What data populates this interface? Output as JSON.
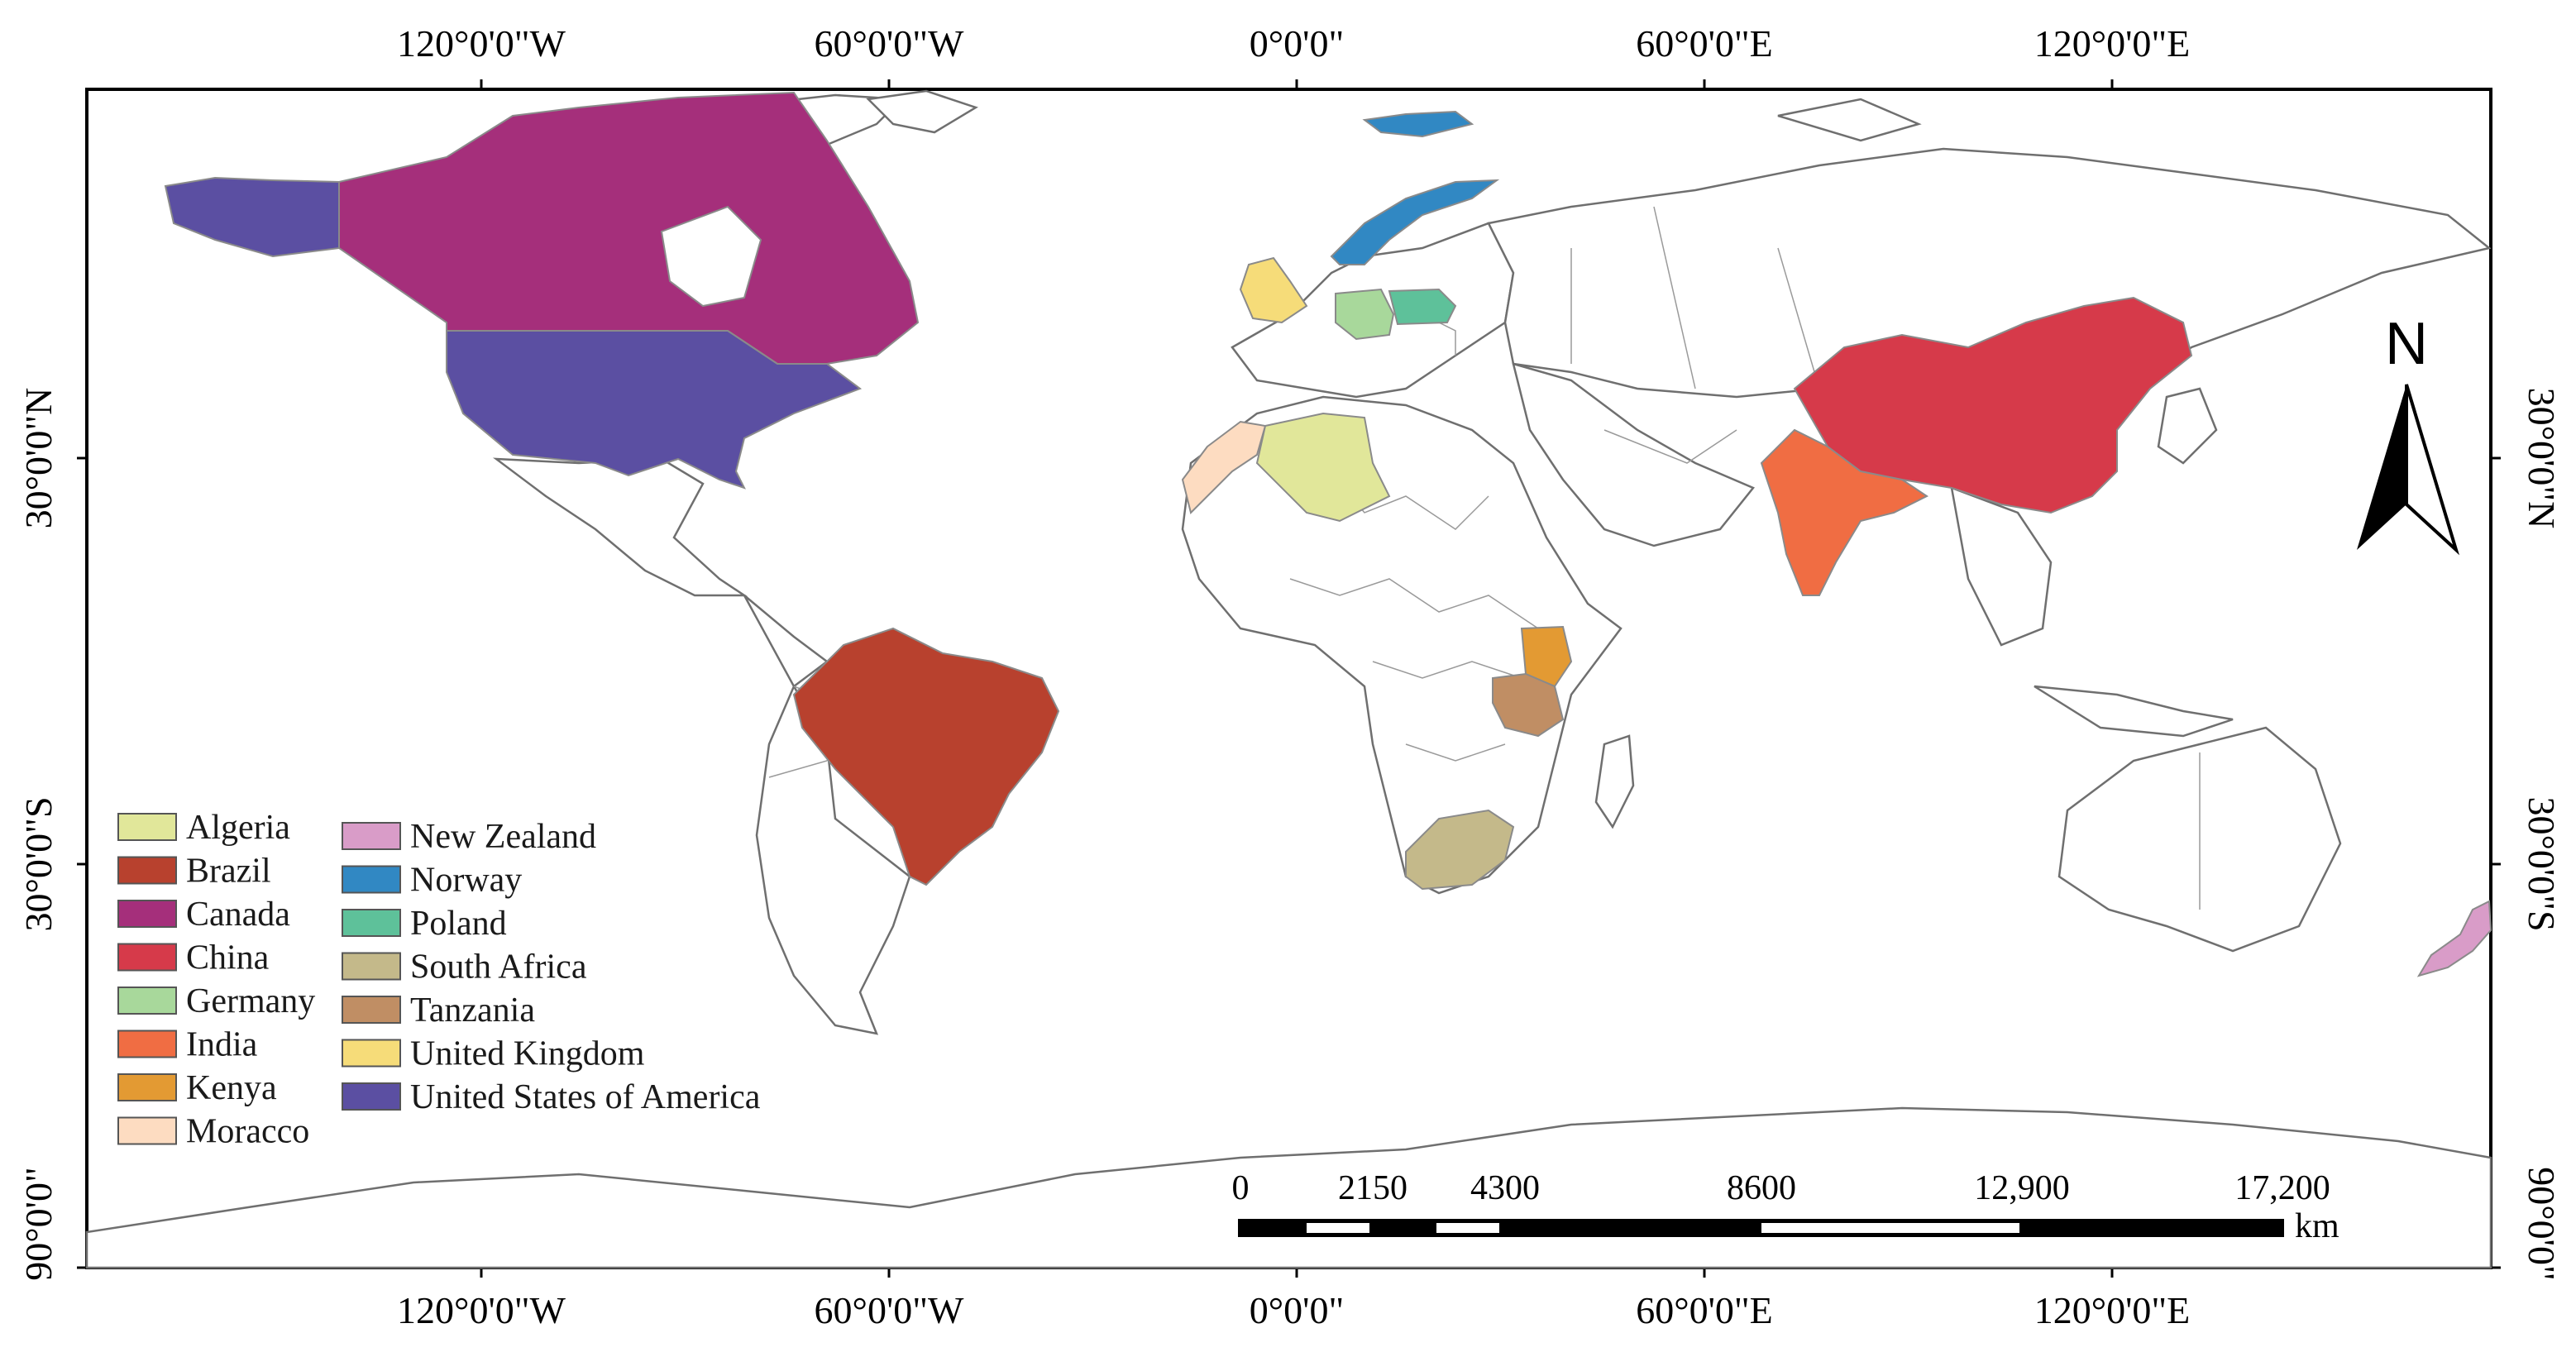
{
  "map": {
    "longitude_labels": [
      "120°0'0\"W",
      "60°0'0\"W",
      "0°0'0\"",
      "60°0'0\"E",
      "120°0'0\"E"
    ],
    "latitude_labels": [
      "30°0'0\"N",
      "30°0'0\"S",
      "90°0'0\""
    ]
  },
  "legend": {
    "items": [
      {
        "label": "Algeria",
        "color": "#e1e79a"
      },
      {
        "label": "Brazil",
        "color": "#b8412e"
      },
      {
        "label": "Canada",
        "color": "#a52f7b"
      },
      {
        "label": "China",
        "color": "#d63a4a"
      },
      {
        "label": "Germany",
        "color": "#a8d89b"
      },
      {
        "label": "India",
        "color": "#f06d43"
      },
      {
        "label": "Kenya",
        "color": "#e39a33"
      },
      {
        "label": "Moracco",
        "color": "#fddcc1"
      },
      {
        "label": "New Zealand",
        "color": "#d99cc8"
      },
      {
        "label": "Norway",
        "color": "#3188c3"
      },
      {
        "label": "Poland",
        "color": "#5ec19a"
      },
      {
        "label": "South Africa",
        "color": "#c4b98a"
      },
      {
        "label": "Tanzania",
        "color": "#c08e64"
      },
      {
        "label": "United Kingdom",
        "color": "#f6dc79"
      },
      {
        "label": "United States of America",
        "color": "#5b4fa2"
      }
    ]
  },
  "scale_bar": {
    "labels": [
      "0",
      "2150",
      "4300",
      "8600",
      "12,900",
      "17,200"
    ],
    "unit": "km"
  },
  "north_arrow": {
    "label": "N"
  }
}
